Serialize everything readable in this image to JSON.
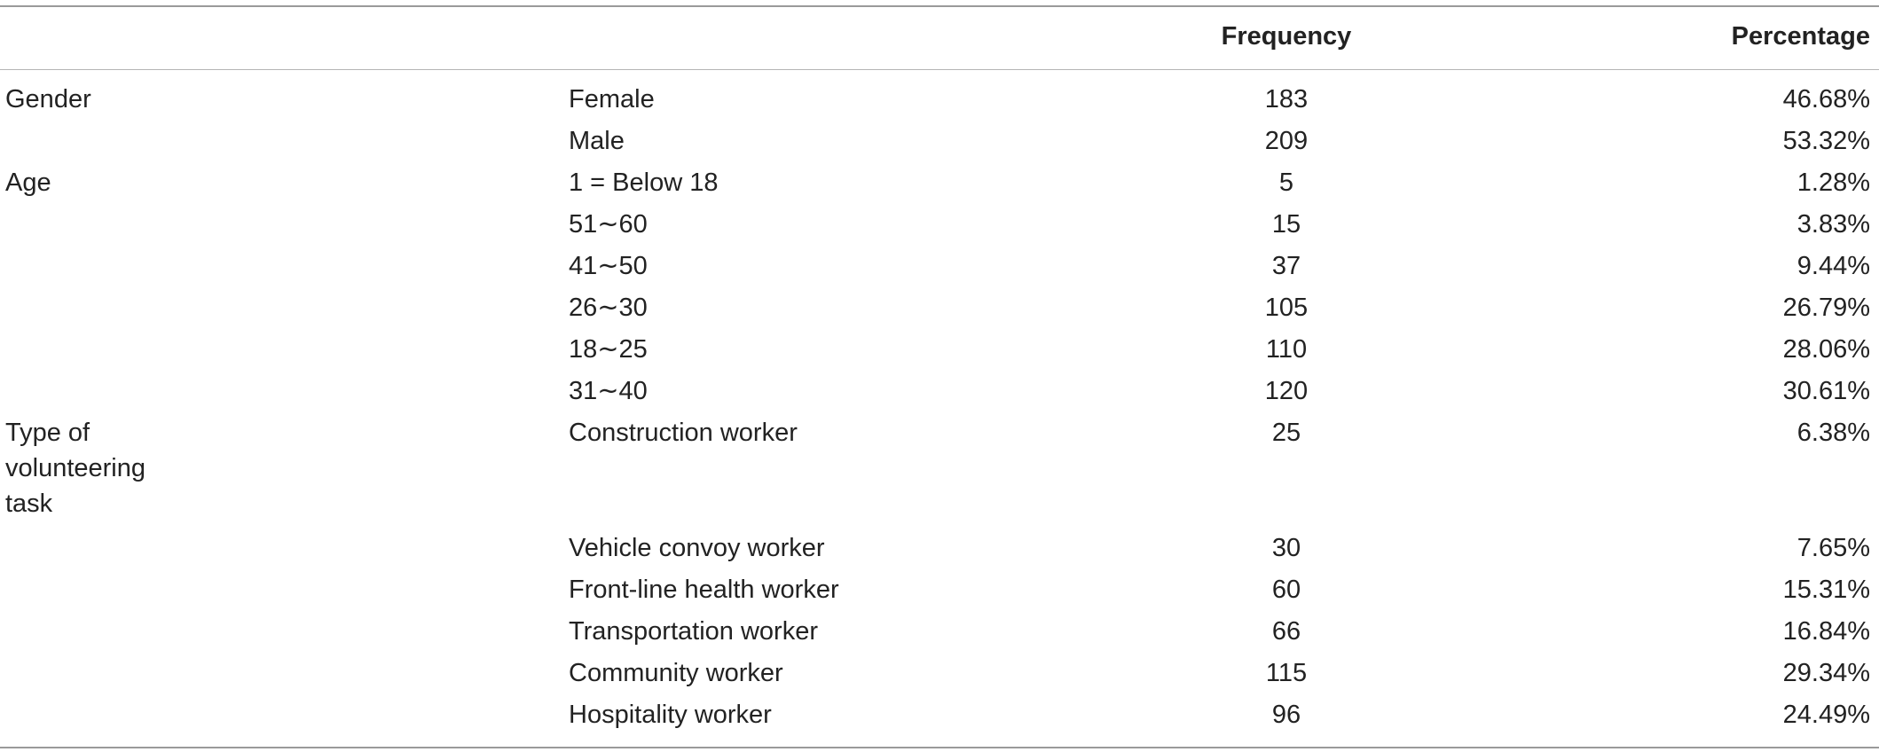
{
  "table": {
    "headers": {
      "group": "",
      "category": "",
      "frequency": "Frequency",
      "percentage": "Percentage"
    },
    "rows": [
      {
        "group": "Gender",
        "category": "Female",
        "frequency": "183",
        "percentage": "46.68%"
      },
      {
        "group": "",
        "category": "Male",
        "frequency": "209",
        "percentage": "53.32%"
      },
      {
        "group": "Age",
        "category": "1 = Below 18",
        "frequency": "5",
        "percentage": "1.28%"
      },
      {
        "group": "",
        "category": "51∼60",
        "frequency": "15",
        "percentage": "3.83%"
      },
      {
        "group": "",
        "category": "41∼50",
        "frequency": "37",
        "percentage": "9.44%"
      },
      {
        "group": "",
        "category": "26∼30",
        "frequency": "105",
        "percentage": "26.79%"
      },
      {
        "group": "",
        "category": "18∼25",
        "frequency": "110",
        "percentage": "28.06%"
      },
      {
        "group": "",
        "category": "31∼40",
        "frequency": "120",
        "percentage": "30.61%"
      },
      {
        "group": "Type of volunteering task",
        "category": "Construction worker",
        "frequency": "25",
        "percentage": "6.38%"
      },
      {
        "group": "",
        "category": "Vehicle convoy worker",
        "frequency": "30",
        "percentage": "7.65%"
      },
      {
        "group": "",
        "category": "Front-line health worker",
        "frequency": "60",
        "percentage": "15.31%"
      },
      {
        "group": "",
        "category": "Transportation worker",
        "frequency": "66",
        "percentage": "16.84%"
      },
      {
        "group": "",
        "category": "Community worker",
        "frequency": "115",
        "percentage": "29.34%"
      },
      {
        "group": "",
        "category": "Hospitality worker",
        "frequency": "96",
        "percentage": "24.49%"
      }
    ]
  }
}
